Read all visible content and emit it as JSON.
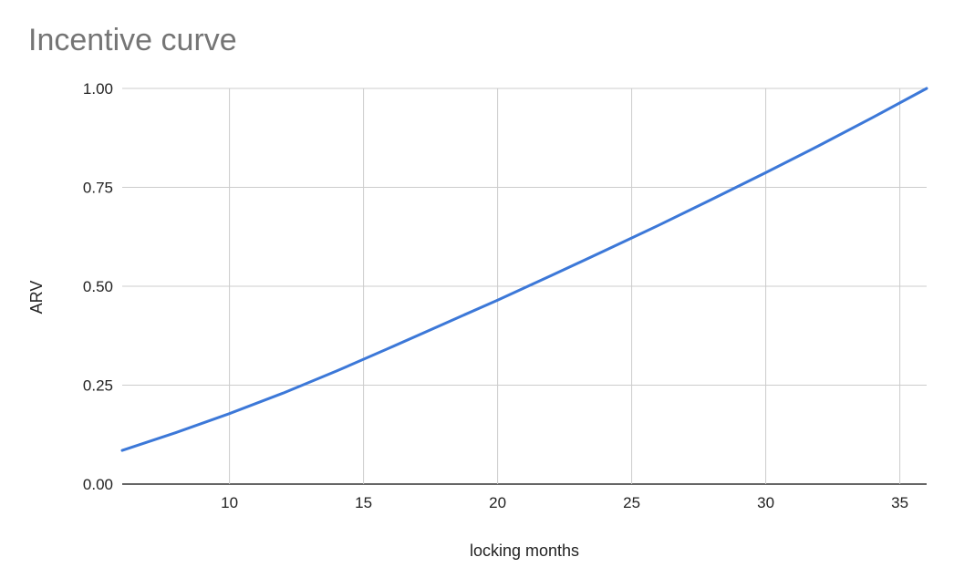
{
  "chart_data": {
    "type": "line",
    "title": "Incentive curve",
    "xlabel": "locking months",
    "ylabel": "ARV",
    "xlim": [
      6,
      36
    ],
    "ylim": [
      0,
      1
    ],
    "x_ticks": [
      10,
      15,
      20,
      25,
      30,
      35
    ],
    "y_ticks": [
      "0.00",
      "0.25",
      "0.50",
      "0.75",
      "1.00"
    ],
    "grid": true,
    "legend": "none",
    "series": [
      {
        "color": "#3c78d8",
        "x": [
          6,
          8,
          10,
          12,
          14,
          16,
          18,
          20,
          22,
          24,
          26,
          28,
          30,
          32,
          34,
          36
        ],
        "y": [
          0.085,
          0.13,
          0.178,
          0.23,
          0.286,
          0.345,
          0.405,
          0.465,
          0.527,
          0.59,
          0.654,
          0.72,
          0.787,
          0.856,
          0.927,
          1.0
        ]
      }
    ]
  },
  "colors": {
    "grid": "#cccccc",
    "axis": "#333333",
    "title": "#757575"
  }
}
